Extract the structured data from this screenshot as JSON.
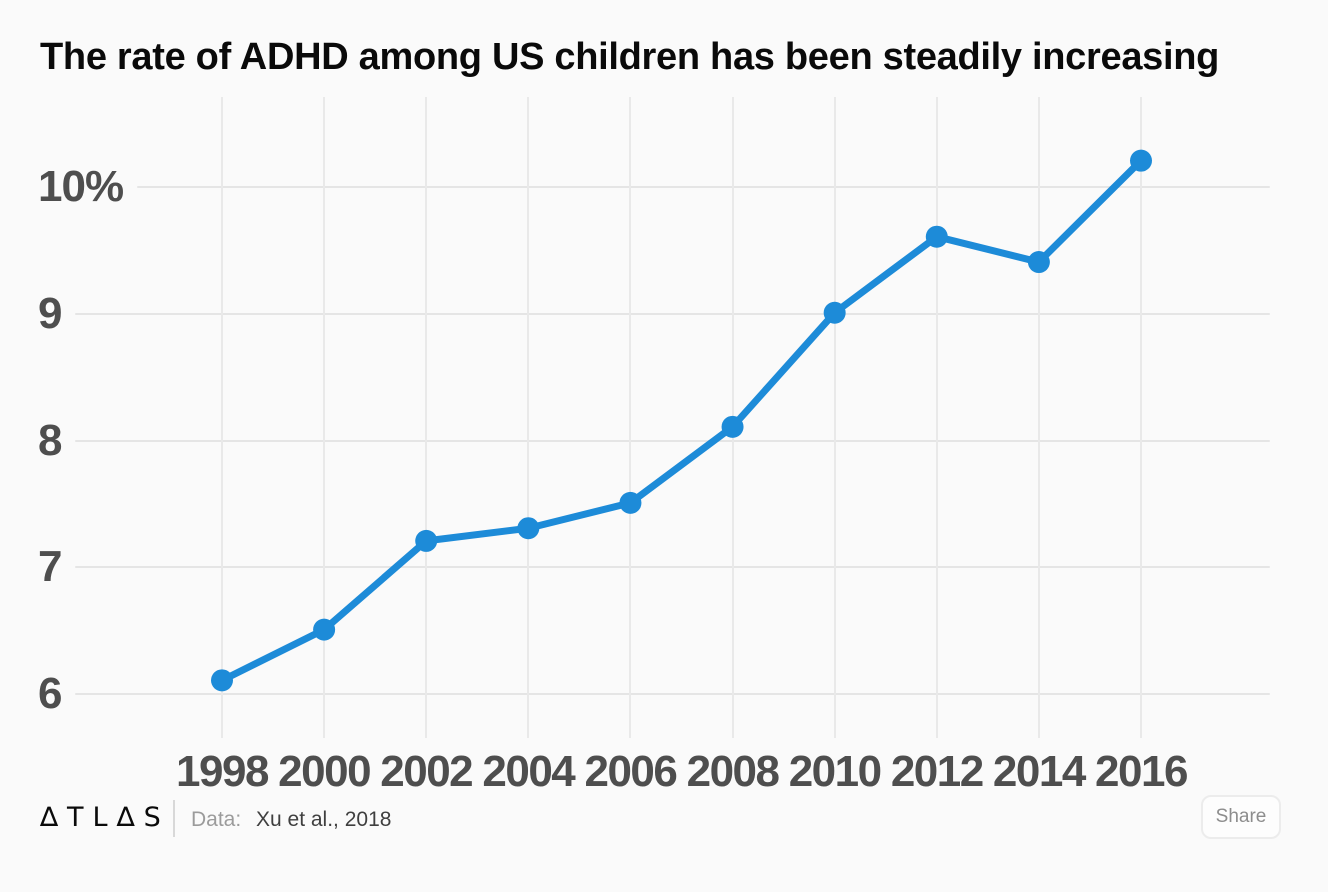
{
  "chart_data": {
    "type": "line",
    "title": "The rate of ADHD among US children has been steadily increasing",
    "x": [
      1998,
      2000,
      2002,
      2004,
      2006,
      2008,
      2010,
      2012,
      2014,
      2016
    ],
    "values": [
      6.1,
      6.5,
      7.2,
      7.3,
      7.5,
      8.1,
      9.0,
      9.6,
      9.4,
      10.2
    ],
    "unit": "%",
    "xlabel": "",
    "ylabel": "",
    "yticks": [
      6,
      7,
      8,
      9,
      10
    ],
    "ytick_labels": [
      "6",
      "7",
      "8",
      "9",
      "10%"
    ],
    "xtick_labels": [
      "1998",
      "2000",
      "2002",
      "2004",
      "2006",
      "2008",
      "2010",
      "2012",
      "2014",
      "2016"
    ],
    "ylim": [
      5.6,
      10.7
    ],
    "grid": true,
    "legend": false,
    "line_color": "#1d8bd8",
    "point_color": "#1d8bd8"
  },
  "footer": {
    "brand": "ATLAS",
    "logo_text": "∆TL∆S",
    "source_label": "Data:",
    "source_value": "Xu et al., 2018",
    "share_label": "Share"
  },
  "colors": {
    "background": "#fafafa",
    "gridline": "#e5e5e5",
    "axis_text": "#4e4e4e",
    "accent_blue": "#1d8bd8"
  }
}
